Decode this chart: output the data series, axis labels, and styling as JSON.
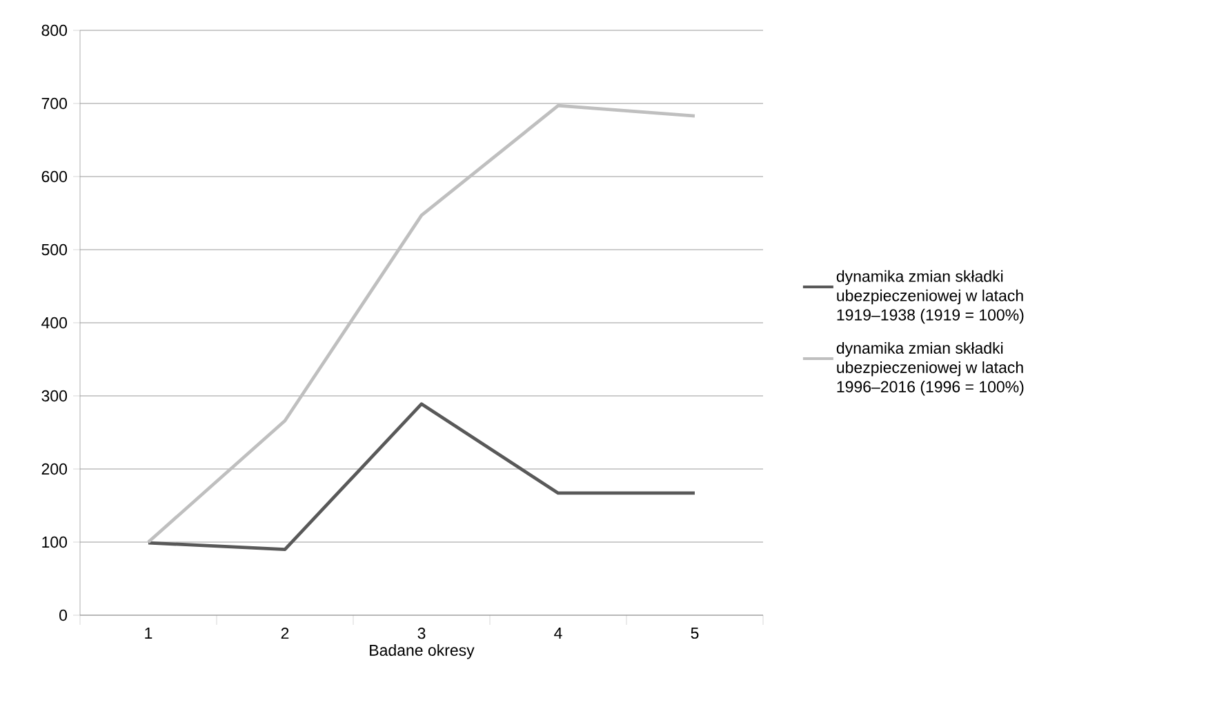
{
  "chart_data": {
    "type": "line",
    "xlabel": "Badane okresy",
    "categories": [
      "1",
      "2",
      "3",
      "4",
      "5"
    ],
    "series": [
      {
        "name": "dynamika zmian składki ubezpieczeniowej w latach 1919–1938 (1919 = 100%)",
        "color": "#595959",
        "values": [
          99,
          90,
          289,
          167,
          167
        ]
      },
      {
        "name": "dynamika zmian składki ubezpieczeniowej w latach 1996–2016 (1996 = 100%)",
        "color": "#bfbfbf",
        "values": [
          100,
          266,
          547,
          697,
          683
        ]
      }
    ],
    "ylim": [
      0,
      800
    ],
    "yticks": [
      0,
      100,
      200,
      300,
      400,
      500,
      600,
      700,
      800
    ],
    "grid": "y",
    "legend": "right",
    "marker": "none",
    "line_style": "solid"
  }
}
